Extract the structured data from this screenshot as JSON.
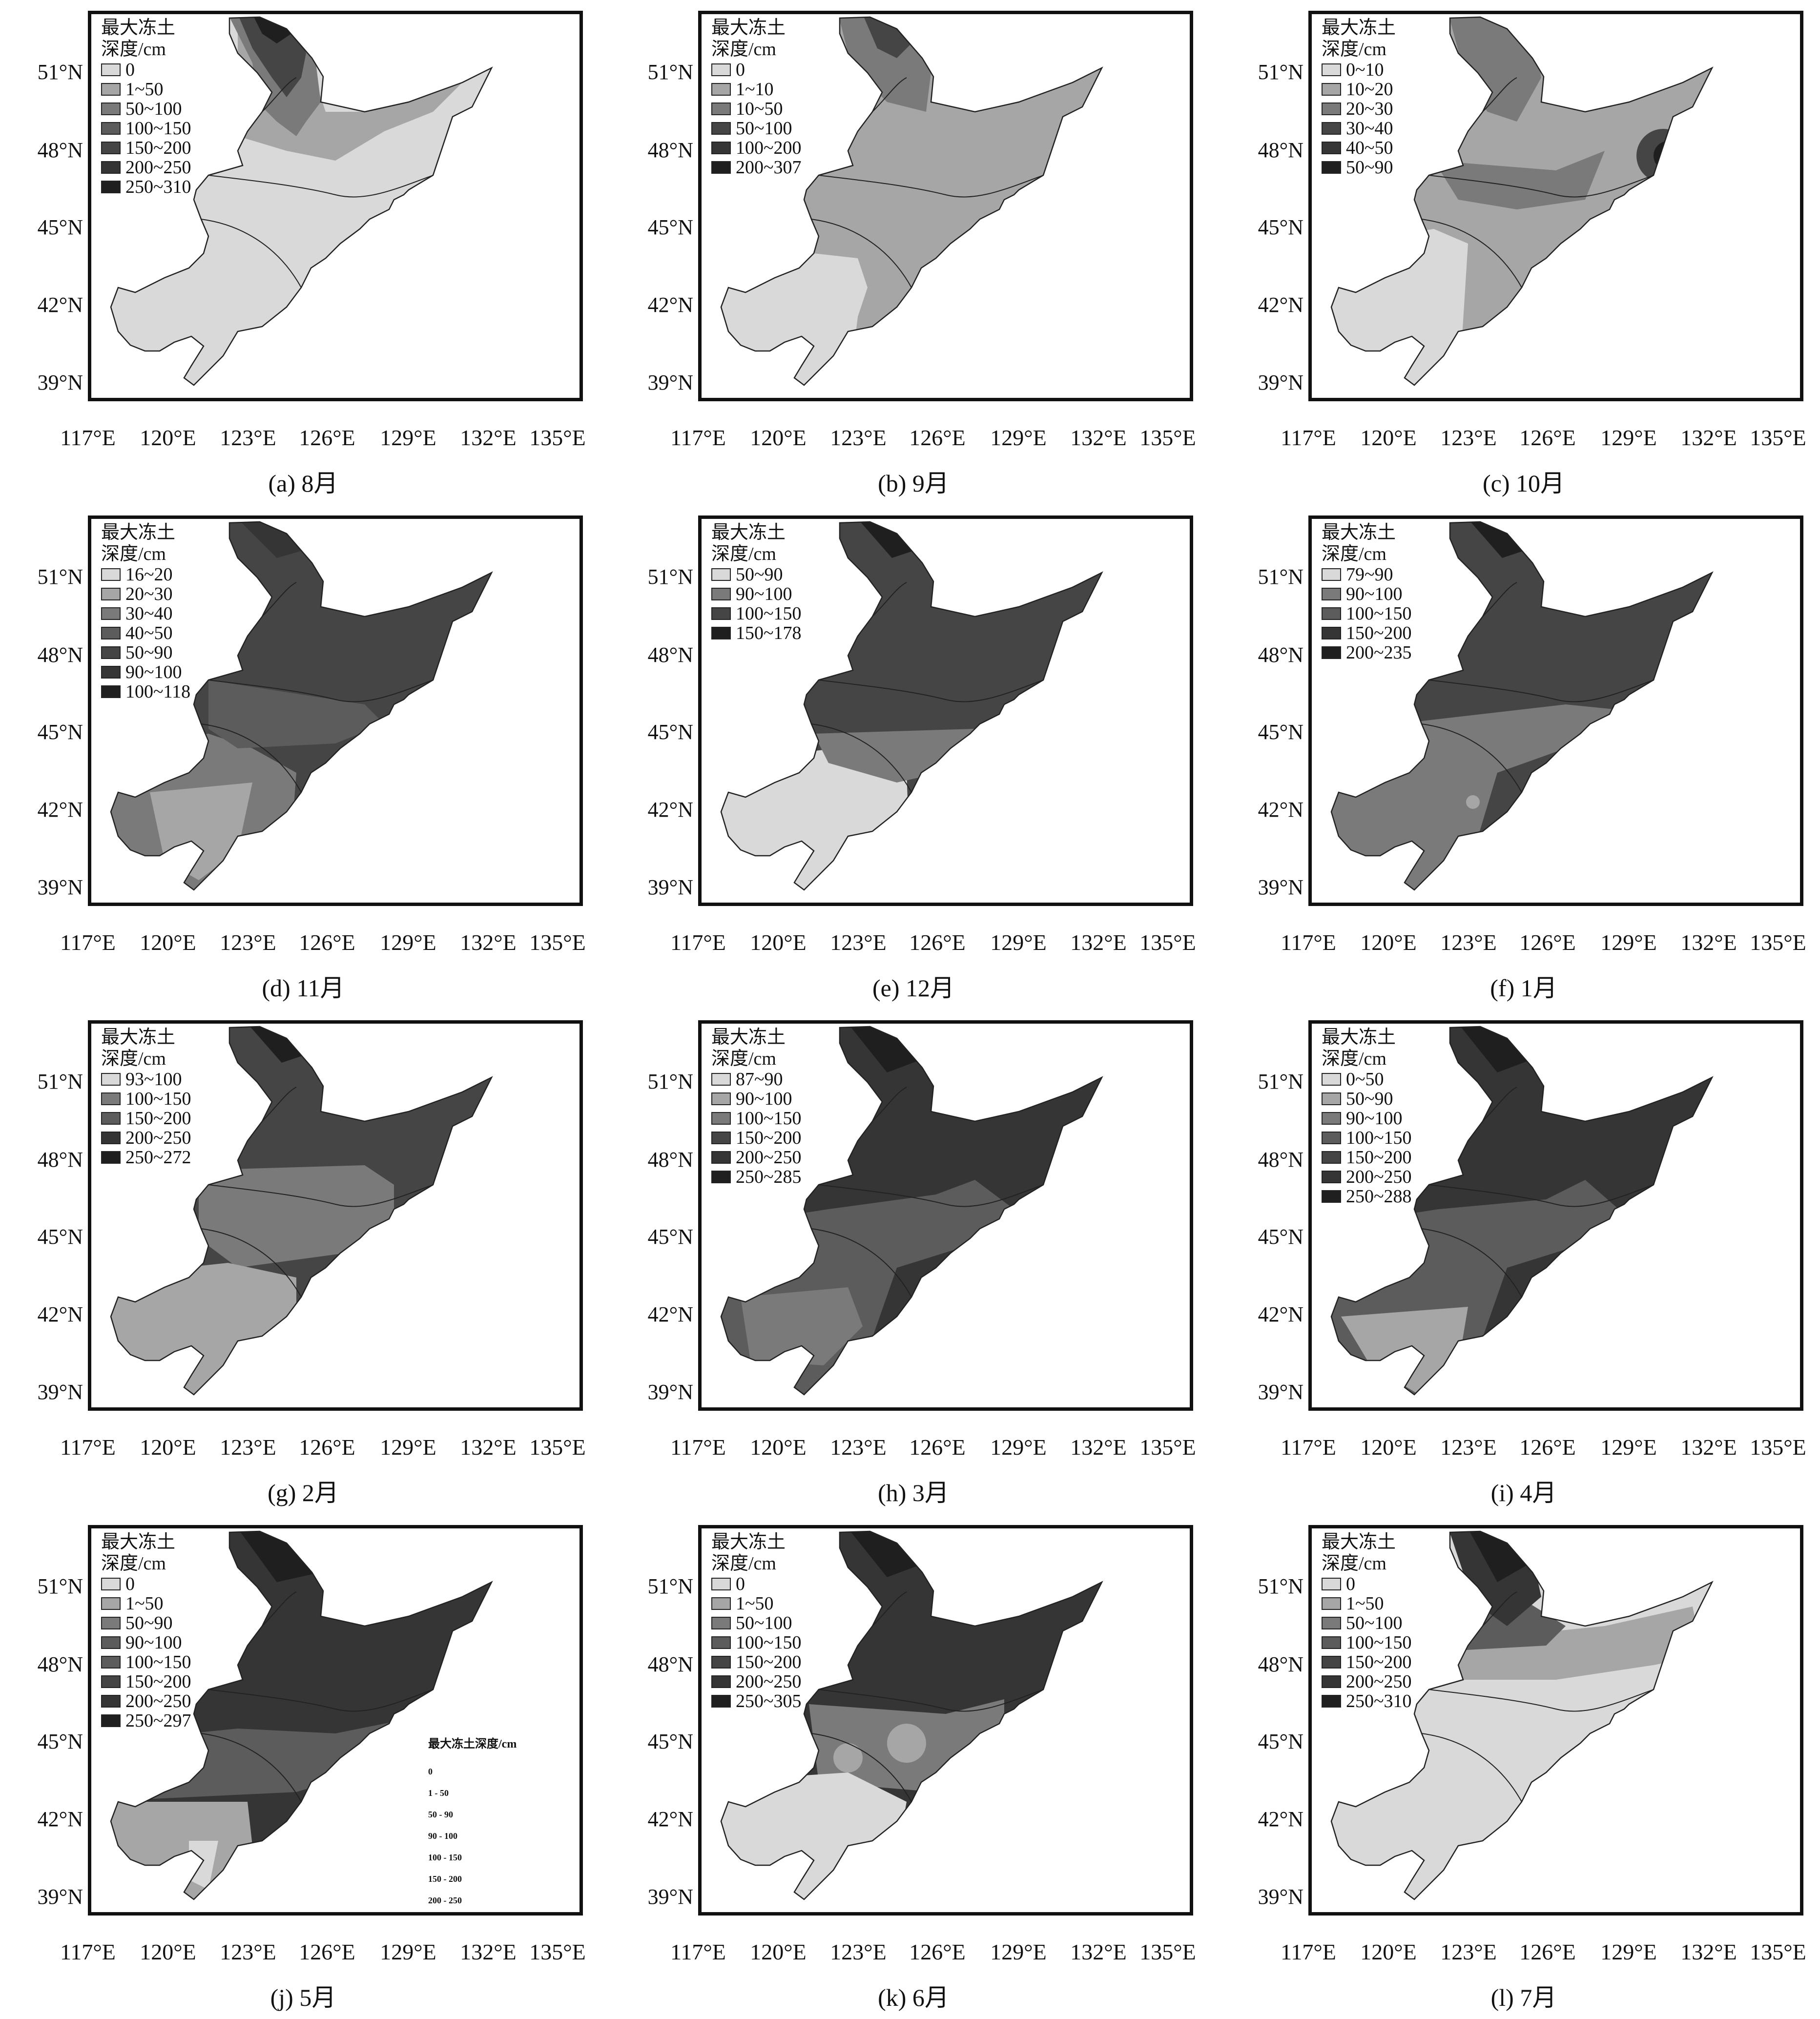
{
  "legend_title": "最大冻土\n深度/cm",
  "y_ticks": [
    "51°N",
    "48°N",
    "45°N",
    "42°N",
    "39°N"
  ],
  "x_ticks": [
    "117°E",
    "120°E",
    "123°E",
    "126°E",
    "129°E",
    "132°E",
    "135°E"
  ],
  "colors": [
    "#d9d9d9",
    "#a6a6a6",
    "#7a7a7a",
    "#5c5c5c",
    "#454545",
    "#353535",
    "#1f1f1f"
  ],
  "panels": [
    {
      "id": "a",
      "caption": "(a) 8月",
      "legend": [
        "0",
        "1~50",
        "50~100",
        "100~150",
        "150~200",
        "200~250",
        "250~310"
      ]
    },
    {
      "id": "b",
      "caption": "(b) 9月",
      "legend": [
        "0",
        "1~10",
        "10~50",
        "50~100",
        "100~200",
        "200~307"
      ]
    },
    {
      "id": "c",
      "caption": "(c) 10月",
      "legend": [
        "0~10",
        "10~20",
        "20~30",
        "30~40",
        "40~50",
        "50~90"
      ]
    },
    {
      "id": "d",
      "caption": "(d) 11月",
      "legend": [
        "16~20",
        "20~30",
        "30~40",
        "40~50",
        "50~90",
        "90~100",
        "100~118"
      ]
    },
    {
      "id": "e",
      "caption": "(e) 12月",
      "legend": [
        "50~90",
        "90~100",
        "100~150",
        "150~178"
      ]
    },
    {
      "id": "f",
      "caption": "(f) 1月",
      "legend": [
        "79~90",
        "90~100",
        "100~150",
        "150~200",
        "200~235"
      ]
    },
    {
      "id": "g",
      "caption": "(g) 2月",
      "legend": [
        "93~100",
        "100~150",
        "150~200",
        "200~250",
        "250~272"
      ]
    },
    {
      "id": "h",
      "caption": "(h) 3月",
      "legend": [
        "87~90",
        "90~100",
        "100~150",
        "150~200",
        "200~250",
        "250~285"
      ]
    },
    {
      "id": "i",
      "caption": "(i) 4月",
      "legend": [
        "0~50",
        "50~90",
        "90~100",
        "100~150",
        "150~200",
        "200~250",
        "250~288"
      ]
    },
    {
      "id": "j",
      "caption": "(j) 5月",
      "legend": [
        "0",
        "1~50",
        "50~90",
        "90~100",
        "100~150",
        "150~200",
        "200~250",
        "250~297"
      ],
      "inset_title": "最大冻土深度/cm",
      "inset_items": [
        "0",
        "1 - 50",
        "50 - 90",
        "90 - 100",
        "100 - 150",
        "150 - 200",
        "200 - 250"
      ]
    },
    {
      "id": "k",
      "caption": "(k) 6月",
      "legend": [
        "0",
        "1~50",
        "50~100",
        "100~150",
        "150~200",
        "200~250",
        "250~305"
      ]
    },
    {
      "id": "l",
      "caption": "(l) 7月",
      "legend": [
        "0",
        "1~50",
        "50~100",
        "100~150",
        "150~200",
        "200~250",
        "250~310"
      ]
    }
  ]
}
